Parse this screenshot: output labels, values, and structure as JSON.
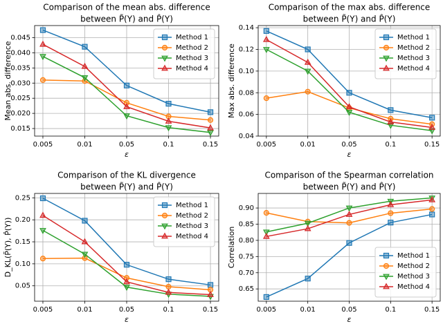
{
  "chart_data": [
    {
      "type": "line",
      "title": [
        "Comparison of the mean abs. difference",
        "between P̃(Y) and P̂(Y)"
      ],
      "xlabel": "ε",
      "ylabel": "Mean abs. difference",
      "categories": [
        "0.005",
        "0.01",
        "0.05",
        "0.1",
        "0.15"
      ],
      "series": [
        {
          "name": "Method 1",
          "color": "#1f77b4",
          "marker": "square",
          "values": [
            0.0475,
            0.042,
            0.0292,
            0.0232,
            0.0204
          ]
        },
        {
          "name": "Method 2",
          "color": "#ff7f0e",
          "marker": "circle",
          "values": [
            0.031,
            0.0307,
            0.0235,
            0.019,
            0.0178
          ]
        },
        {
          "name": "Method 3",
          "color": "#2ca02c",
          "marker": "triangle-down",
          "values": [
            0.0388,
            0.0318,
            0.0192,
            0.0153,
            0.0137
          ]
        },
        {
          "name": "Method 4",
          "color": "#d62728",
          "marker": "triangle-up",
          "values": [
            0.0428,
            0.0355,
            0.0222,
            0.0174,
            0.0152
          ]
        }
      ],
      "ylim": [
        0.0125,
        0.049
      ],
      "yticks": [
        0.015,
        {
          "value": 0.02,
          "label": "0.020"
        },
        0.025,
        {
          "value": 0.03,
          "label": "0.030"
        },
        0.035,
        {
          "value": 0.04,
          "label": "0.040"
        },
        0.045
      ],
      "grid": true,
      "legend": "upper right"
    },
    {
      "type": "line",
      "title": [
        "Comparison of the max abs. difference",
        "between P̃(Y) and P̂(Y)"
      ],
      "xlabel": "ε",
      "ylabel": "Max abs. difference",
      "categories": [
        "0.005",
        "0.01",
        "0.05",
        "0.1",
        "0.15"
      ],
      "series": [
        {
          "name": "Method 1",
          "color": "#1f77b4",
          "marker": "square",
          "values": [
            0.137,
            0.12,
            0.08,
            0.064,
            0.057
          ]
        },
        {
          "name": "Method 2",
          "color": "#ff7f0e",
          "marker": "circle",
          "values": [
            0.075,
            0.081,
            0.066,
            0.056,
            0.051
          ]
        },
        {
          "name": "Method 3",
          "color": "#2ca02c",
          "marker": "triangle-down",
          "values": [
            0.12,
            0.1,
            0.062,
            0.05,
            0.045
          ]
        },
        {
          "name": "Method 4",
          "color": "#d62728",
          "marker": "triangle-up",
          "values": [
            0.129,
            0.108,
            0.067,
            0.053,
            0.048
          ]
        }
      ],
      "ylim": [
        0.04,
        0.142
      ],
      "yticks": [
        0.04,
        0.06,
        0.08,
        {
          "value": 0.1,
          "label": "0.10"
        },
        0.12,
        0.14
      ],
      "grid": true,
      "legend": "upper right"
    },
    {
      "type": "line",
      "title": [
        "Comparison of the KL divergence",
        "between P̃(Y) and P̂(Y)"
      ],
      "xlabel": "ε",
      "ylabel": "D_KL(P̃(Y), P̂(Y))",
      "categories": [
        "0.005",
        "0.01",
        "0.05",
        "0.1",
        "0.15"
      ],
      "series": [
        {
          "name": "Method 1",
          "color": "#1f77b4",
          "marker": "square",
          "values": [
            0.249,
            0.198,
            0.098,
            0.065,
            0.052
          ]
        },
        {
          "name": "Method 2",
          "color": "#ff7f0e",
          "marker": "circle",
          "values": [
            0.112,
            0.113,
            0.068,
            0.048,
            0.041
          ]
        },
        {
          "name": "Method 3",
          "color": "#2ca02c",
          "marker": "triangle-down",
          "values": [
            0.176,
            0.122,
            0.047,
            0.031,
            0.026
          ]
        },
        {
          "name": "Method 4",
          "color": "#d62728",
          "marker": "triangle-up",
          "values": [
            0.21,
            0.15,
            0.059,
            0.035,
            0.03
          ]
        }
      ],
      "ylim": [
        0.015,
        0.26
      ],
      "yticks": [
        0.05,
        {
          "value": 0.1,
          "label": "0.10"
        },
        0.15,
        {
          "value": 0.2,
          "label": "0.20"
        },
        0.25
      ],
      "grid": true,
      "legend": "upper right"
    },
    {
      "type": "line",
      "title": [
        "Comparison of the Spearman correlation",
        "between P̃(Y) and P̂(Y)"
      ],
      "xlabel": "ε",
      "ylabel": "Correlation",
      "categories": [
        "0.005",
        "0.01",
        "0.05",
        "0.1",
        "0.15"
      ],
      "series": [
        {
          "name": "Method 1",
          "color": "#1f77b4",
          "marker": "square",
          "values": [
            0.625,
            0.682,
            0.792,
            0.855,
            0.88
          ]
        },
        {
          "name": "Method 2",
          "color": "#ff7f0e",
          "marker": "circle",
          "values": [
            0.885,
            0.858,
            0.854,
            0.884,
            0.897
          ]
        },
        {
          "name": "Method 3",
          "color": "#2ca02c",
          "marker": "triangle-down",
          "values": [
            0.826,
            0.853,
            0.9,
            0.921,
            0.931
          ]
        },
        {
          "name": "Method 4",
          "color": "#d62728",
          "marker": "triangle-up",
          "values": [
            0.812,
            0.836,
            0.88,
            0.91,
            0.925
          ]
        }
      ],
      "ylim": [
        0.612,
        0.945
      ],
      "yticks": [
        0.65,
        {
          "value": 0.7,
          "label": "0.70"
        },
        0.75,
        {
          "value": 0.8,
          "label": "0.80"
        },
        0.85,
        {
          "value": 0.9,
          "label": "0.90"
        }
      ],
      "grid": true,
      "legend": "lower right"
    }
  ]
}
